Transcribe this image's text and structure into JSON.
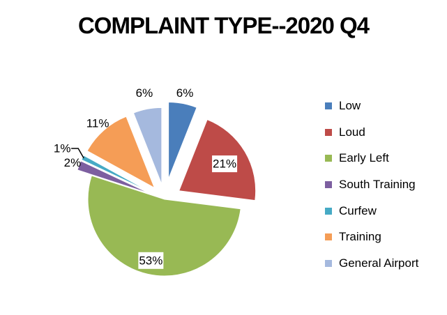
{
  "chart_data": {
    "type": "pie",
    "title": "COMPLAINT TYPE--2020 Q4",
    "legend_position": "right",
    "label_format": "percent",
    "slices": [
      {
        "name": "Low",
        "value": 6,
        "label": "6%",
        "color": "#4A7EBB"
      },
      {
        "name": "Loud",
        "value": 21,
        "label": "21%",
        "color": "#BE4B48"
      },
      {
        "name": "Early Left",
        "value": 53,
        "label": "53%",
        "color": "#98B954"
      },
      {
        "name": "South Training",
        "value": 2,
        "label": "2%",
        "color": "#7D5FA0"
      },
      {
        "name": "Curfew",
        "value": 1,
        "label": "1%",
        "color": "#46AAC5"
      },
      {
        "name": "Training",
        "value": 11,
        "label": "11%",
        "color": "#F59D56"
      },
      {
        "name": "General Airport",
        "value": 6,
        "label": "6%",
        "color": "#A5B9DE"
      }
    ]
  }
}
